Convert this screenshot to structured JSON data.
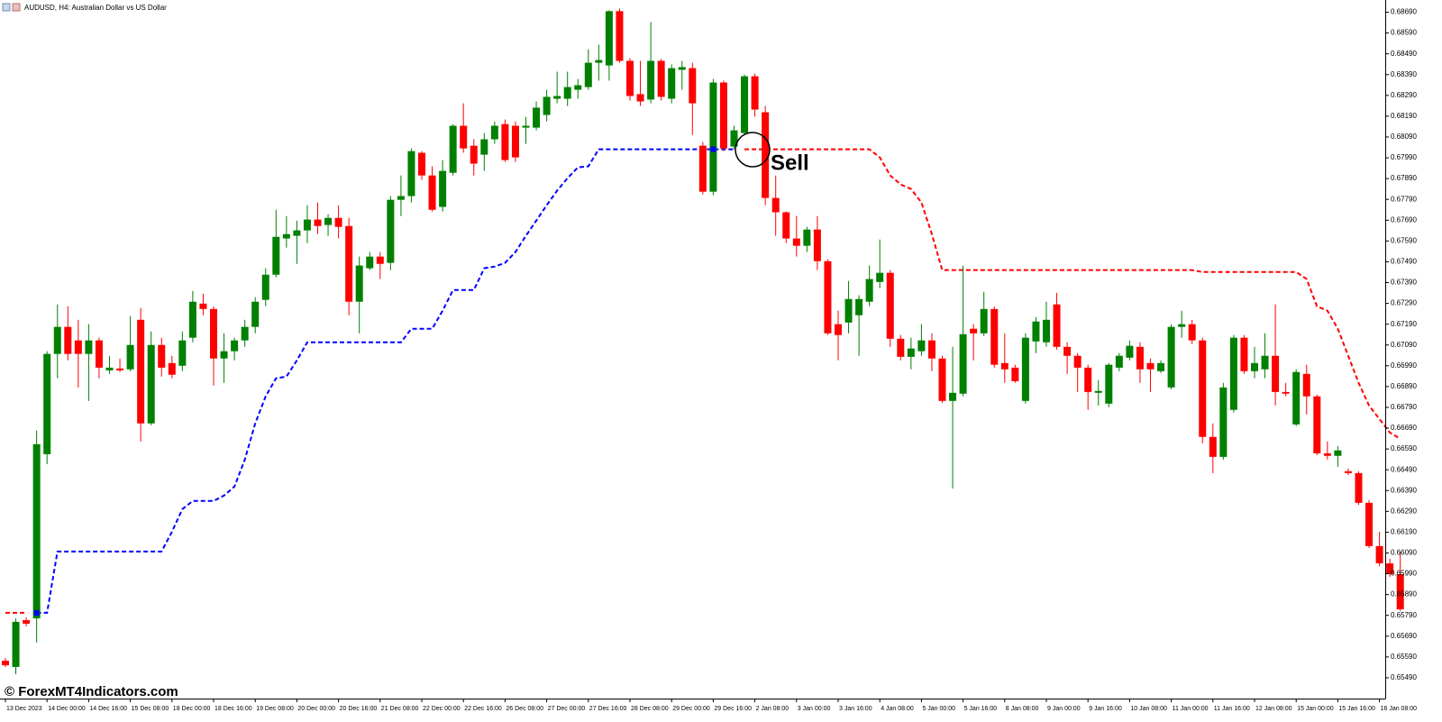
{
  "chart_data": {
    "type": "candlestick",
    "title": "AUDUSD, H4:  Australian Dollar vs US Dollar",
    "watermark": "© ForexMT4Indicators.com",
    "annotation": "Sell",
    "up_color": "#008000",
    "down_color": "#ff0000",
    "grid": false,
    "ylim": [
      0.6539,
      0.6874
    ],
    "yticks": [
      {
        "value": 0.6869,
        "label": "0.68690"
      },
      {
        "value": 0.6859,
        "label": "0.68590"
      },
      {
        "value": 0.6849,
        "label": "0.68490"
      },
      {
        "value": 0.6839,
        "label": "0.68390"
      },
      {
        "value": 0.6829,
        "label": "0.68290"
      },
      {
        "value": 0.6819,
        "label": "0.68190"
      },
      {
        "value": 0.6809,
        "label": "0.68090"
      },
      {
        "value": 0.6799,
        "label": "0.67990"
      },
      {
        "value": 0.6789,
        "label": "0.67890"
      },
      {
        "value": 0.6779,
        "label": "0.67790"
      },
      {
        "value": 0.6769,
        "label": "0.67690"
      },
      {
        "value": 0.6759,
        "label": "0.67590"
      },
      {
        "value": 0.6749,
        "label": "0.67490"
      },
      {
        "value": 0.6739,
        "label": "0.67390"
      },
      {
        "value": 0.6729,
        "label": "0.67290"
      },
      {
        "value": 0.6719,
        "label": "0.67190"
      },
      {
        "value": 0.6709,
        "label": "0.67090"
      },
      {
        "value": 0.6699,
        "label": "0.66990"
      },
      {
        "value": 0.6689,
        "label": "0.66890"
      },
      {
        "value": 0.6679,
        "label": "0.66790"
      },
      {
        "value": 0.6669,
        "label": "0.66690"
      },
      {
        "value": 0.6659,
        "label": "0.66590"
      },
      {
        "value": 0.6649,
        "label": "0.66490"
      },
      {
        "value": 0.6639,
        "label": "0.66390"
      },
      {
        "value": 0.6629,
        "label": "0.66290"
      },
      {
        "value": 0.6619,
        "label": "0.66190"
      },
      {
        "value": 0.6609,
        "label": "0.66090"
      },
      {
        "value": 0.6599,
        "label": "0.65990"
      },
      {
        "value": 0.6589,
        "label": "0.65890"
      },
      {
        "value": 0.6579,
        "label": "0.65790"
      },
      {
        "value": 0.6569,
        "label": "0.65690"
      },
      {
        "value": 0.6559,
        "label": "0.65590"
      },
      {
        "value": 0.6549,
        "label": "0.65490"
      }
    ],
    "categories": [
      "13 Dec 2023",
      null,
      null,
      null,
      "14 Dec 00:00",
      null,
      null,
      null,
      "14 Dec 16:00",
      null,
      null,
      null,
      "15 Dec 08:00",
      null,
      null,
      null,
      "18 Dec 00:00",
      null,
      null,
      null,
      "18 Dec 16:00",
      null,
      null,
      null,
      "19 Dec 08:00",
      null,
      null,
      null,
      "20 Dec 00:00",
      null,
      null,
      null,
      "20 Dec 16:00",
      null,
      null,
      null,
      "21 Dec 08:00",
      null,
      null,
      null,
      "22 Dec 00:00",
      null,
      null,
      null,
      "22 Dec 16:00",
      null,
      null,
      null,
      "26 Dec 08:00",
      null,
      null,
      null,
      "27 Dec 00:00",
      null,
      null,
      null,
      "27 Dec 16:00",
      null,
      null,
      null,
      "28 Dec 08:00",
      null,
      null,
      null,
      "29 Dec 00:00",
      null,
      null,
      null,
      "29 Dec 16:00",
      null,
      null,
      null,
      "2 Jan 08:00",
      null,
      null,
      null,
      "3 Jan 00:00",
      null,
      null,
      null,
      "3 Jan 16:00",
      null,
      null,
      null,
      "4 Jan 08:00",
      null,
      null,
      null,
      "5 Jan 00:00",
      null,
      null,
      null,
      "5 Jan 16:00",
      null,
      null,
      null,
      "8 Jan 08:00",
      null,
      null,
      null,
      "9 Jan 00:00",
      null,
      null,
      null,
      "9 Jan 16:00",
      null,
      null,
      null,
      "10 Jan 08:00",
      null,
      null,
      null,
      "11 Jan 00:00",
      null,
      null,
      null,
      "11 Jan 16:00",
      null,
      null,
      null,
      "12 Jan 08:00",
      null,
      null,
      null,
      "15 Jan 00:00",
      null,
      null,
      null,
      "15 Jan 16:00",
      null,
      null,
      null,
      "16 Jan 08:00",
      null,
      null
    ],
    "open": [
      0.65572,
      0.65542,
      0.65767,
      0.65776,
      0.66565,
      0.67047,
      0.67177,
      0.67112,
      0.67047,
      0.67112,
      0.66968,
      0.66977,
      0.66973,
      0.67211,
      0.66713,
      0.6709,
      0.67003,
      0.6699,
      0.67125,
      0.67289,
      0.67263,
      0.67025,
      0.6706,
      0.67112,
      0.67177,
      0.67307,
      0.67428,
      0.67602,
      0.67615,
      0.67641,
      0.67693,
      0.67667,
      0.67701,
      0.67662,
      0.67298,
      0.67459,
      0.67515,
      0.67485,
      0.67788,
      0.67806,
      0.68014,
      0.67905,
      0.67754,
      0.67918,
      0.68144,
      0.68048,
      0.68005,
      0.68079,
      0.68152,
      0.68144,
      0.68135,
      0.68135,
      0.68196,
      0.68274,
      0.68274,
      0.68317,
      0.6833,
      0.68447,
      0.68434,
      0.68695,
      0.68456,
      0.68296,
      0.6827,
      0.68456,
      0.68274,
      0.68413,
      0.68421,
      0.68048,
      0.67827,
      0.68352,
      0.68044,
      0.68109,
      0.68382,
      0.68209,
      0.67797,
      0.67728,
      0.67602,
      0.67567,
      0.67645,
      0.67493,
      0.6719,
      0.67198,
      0.67233,
      0.67298,
      0.67393,
      0.67437,
      0.6712,
      0.67033,
      0.6706,
      0.67112,
      0.67025,
      0.66821,
      0.66856,
      0.67168,
      0.67146,
      0.67263,
      0.67003,
      0.66981,
      0.66821,
      0.67107,
      0.67103,
      0.67285,
      0.67081,
      0.67038,
      0.66981,
      0.6686,
      0.66808,
      0.66981,
      0.67029,
      0.67081,
      0.67003,
      0.66964,
      0.66886,
      0.67177,
      0.6719,
      0.67112,
      0.66648,
      0.66552,
      0.66778,
      0.67125,
      0.66964,
      0.66973,
      0.67038,
      0.66864,
      0.66708,
      0.66951,
      0.66843,
      0.66569,
      0.66557,
      0.66483,
      0.66474,
      0.66331,
      0.66123,
      0.6604,
      0.65988
    ],
    "high": [
      0.65585,
      0.65776,
      0.6578,
      0.66678,
      0.6706,
      0.67285,
      0.67276,
      0.67211,
      0.6719,
      0.67125,
      0.67038,
      0.67025,
      0.67229,
      0.67268,
      0.67155,
      0.67125,
      0.67038,
      0.67155,
      0.6735,
      0.67337,
      0.67276,
      0.67146,
      0.67125,
      0.67211,
      0.6732,
      0.67459,
      0.6774,
      0.6771,
      0.67688,
      0.67762,
      0.67775,
      0.67719,
      0.67762,
      0.67701,
      0.67515,
      0.67537,
      0.67537,
      0.67806,
      0.67905,
      0.68035,
      0.68022,
      0.67949,
      0.67979,
      0.68152,
      0.68252,
      0.68079,
      0.68109,
      0.68165,
      0.68174,
      0.68165,
      0.68187,
      0.68261,
      0.68317,
      0.68404,
      0.68404,
      0.68369,
      0.68512,
      0.68534,
      0.68699,
      0.68708,
      0.68469,
      0.68456,
      0.68643,
      0.68465,
      0.68439,
      0.68456,
      0.68447,
      0.68066,
      0.68369,
      0.68361,
      0.68144,
      0.68391,
      0.68395,
      0.68239,
      0.67905,
      0.67732,
      0.6771,
      0.67658,
      0.6771,
      0.67502,
      0.67255,
      0.67398,
      0.67329,
      0.67472,
      0.67597,
      0.6745,
      0.67138,
      0.67125,
      0.6719,
      0.67146,
      0.67038,
      0.67081,
      0.67472,
      0.6719,
      0.67346,
      0.67276,
      0.67146,
      0.66995,
      0.67146,
      0.67224,
      0.67298,
      0.67341,
      0.67103,
      0.67051,
      0.66995,
      0.66921,
      0.67003,
      0.67051,
      0.67112,
      0.67103,
      0.67025,
      0.67016,
      0.6719,
      0.67255,
      0.67211,
      0.67125,
      0.66713,
      0.66908,
      0.67138,
      0.67138,
      0.67081,
      0.67146,
      0.67285,
      0.66908,
      0.66973,
      0.66995,
      0.66851,
      0.66626,
      0.66604,
      0.66496,
      0.66483,
      0.66344,
      0.66192,
      0.66062,
      0.66097
    ],
    "low": [
      0.65542,
      0.65507,
      0.65737,
      0.65659,
      0.66517,
      0.6693,
      0.67016,
      0.66886,
      0.66821,
      0.6693,
      0.66951,
      0.6696,
      0.66964,
      0.66626,
      0.66704,
      0.66938,
      0.6693,
      0.66964,
      0.67103,
      0.67233,
      0.66895,
      0.66908,
      0.67016,
      0.67081,
      0.67146,
      0.67276,
      0.67415,
      0.67558,
      0.6748,
      0.6758,
      0.67623,
      0.67615,
      0.67602,
      0.67233,
      0.67146,
      0.6745,
      0.67407,
      0.6745,
      0.6771,
      0.67775,
      0.67884,
      0.67732,
      0.67732,
      0.67905,
      0.68014,
      0.67905,
      0.67927,
      0.68057,
      0.6797,
      0.6797,
      0.68057,
      0.68122,
      0.68165,
      0.68252,
      0.68239,
      0.68274,
      0.68317,
      0.68361,
      0.68361,
      0.68447,
      0.68265,
      0.68239,
      0.68252,
      0.68265,
      0.68252,
      0.68317,
      0.681,
      0.67814,
      0.6781,
      0.68022,
      0.68031,
      0.681,
      0.68187,
      0.67762,
      0.67615,
      0.6758,
      0.67515,
      0.67537,
      0.6745,
      0.67138,
      0.67016,
      0.67146,
      0.67038,
      0.67276,
      0.67363,
      0.67081,
      0.67016,
      0.66973,
      0.67038,
      0.66964,
      0.66812,
      0.664,
      0.66843,
      0.67016,
      0.67133,
      0.66981,
      0.66908,
      0.66908,
      0.66808,
      0.67051,
      0.67081,
      0.67068,
      0.66951,
      0.66864,
      0.66778,
      0.66799,
      0.66791,
      0.66964,
      0.67016,
      0.66908,
      0.66864,
      0.66955,
      0.66877,
      0.67125,
      0.67094,
      0.66617,
      0.66474,
      0.66539,
      0.66765,
      0.66951,
      0.6693,
      0.6693,
      0.66799,
      0.66843,
      0.667,
      0.66756,
      0.66561,
      0.66539,
      0.66504,
      0.66465,
      0.66322,
      0.66114,
      0.66027,
      0.65975,
      0.65811
    ],
    "close": [
      0.6555,
      0.65759,
      0.6575,
      0.66613,
      0.67047,
      0.67177,
      0.67047,
      0.67047,
      0.67112,
      0.66981,
      0.66981,
      0.66968,
      0.6709,
      0.66713,
      0.6709,
      0.66981,
      0.66947,
      0.67112,
      0.67298,
      0.67263,
      0.67025,
      0.6706,
      0.67112,
      0.67177,
      0.67298,
      0.67428,
      0.6761,
      0.67623,
      0.67641,
      0.67693,
      0.67662,
      0.67701,
      0.67658,
      0.67298,
      0.67472,
      0.67515,
      0.6748,
      0.67788,
      0.67806,
      0.68022,
      0.67905,
      0.6774,
      0.67927,
      0.68144,
      0.68035,
      0.67962,
      0.68079,
      0.68144,
      0.67979,
      0.67992,
      0.68144,
      0.68231,
      0.68283,
      0.68287,
      0.6833,
      0.68339,
      0.68447,
      0.6846,
      0.68695,
      0.68456,
      0.68287,
      0.68261,
      0.68456,
      0.68283,
      0.68421,
      0.68426,
      0.68252,
      0.67827,
      0.68352,
      0.68035,
      0.68122,
      0.68382,
      0.68222,
      0.67797,
      0.67728,
      0.67602,
      0.67567,
      0.67645,
      0.67493,
      0.67146,
      0.67138,
      0.67311,
      0.67311,
      0.67407,
      0.67437,
      0.6712,
      0.67033,
      0.67073,
      0.67112,
      0.67025,
      0.66821,
      0.6686,
      0.67142,
      0.67146,
      0.67263,
      0.66995,
      0.66973,
      0.66916,
      0.67125,
      0.67203,
      0.67211,
      0.67081,
      0.67038,
      0.66981,
      0.66864,
      0.66869,
      0.66995,
      0.67038,
      0.67086,
      0.66973,
      0.66973,
      0.67003,
      0.67177,
      0.6719,
      0.67112,
      0.66648,
      0.66552,
      0.66886,
      0.67125,
      0.66964,
      0.67003,
      0.67038,
      0.66864,
      0.66856,
      0.6696,
      0.66843,
      0.66569,
      0.66557,
      0.66583,
      0.66474,
      0.66331,
      0.66123,
      0.6604,
      0.65988,
      0.65819
    ],
    "lines": [
      {
        "color": "#0000ff",
        "values": [
          null,
          null,
          null,
          0.65802,
          0.65802,
          0.66097,
          0.66097,
          0.66097,
          0.66097,
          0.66097,
          0.66097,
          0.66097,
          0.66097,
          0.66097,
          0.66097,
          0.66097,
          0.66192,
          0.66301,
          0.6634,
          0.6634,
          0.6634,
          0.66366,
          0.66409,
          0.66539,
          0.66713,
          0.66843,
          0.6693,
          0.66938,
          0.67016,
          0.67103,
          0.67103,
          0.67103,
          0.67103,
          0.67103,
          0.67103,
          0.67103,
          0.67103,
          0.67103,
          0.67103,
          0.67168,
          0.67168,
          0.67168,
          0.67255,
          0.67354,
          0.67354,
          0.67354,
          0.67459,
          0.67467,
          0.67485,
          0.67537,
          0.67615,
          0.67688,
          0.67762,
          0.67832,
          0.67892,
          0.67944,
          0.67949,
          0.68031,
          0.68031,
          0.68031,
          0.68031,
          0.68031,
          0.68031,
          0.68031,
          0.68031,
          0.68031,
          0.68031,
          0.68031,
          0.68031,
          0.68031,
          0.68031,
          null,
          null,
          null,
          null,
          null,
          null,
          null,
          null,
          null,
          null,
          null,
          null,
          null,
          null,
          null,
          null,
          null,
          null,
          null,
          null,
          null,
          null,
          null,
          null,
          null,
          null,
          null,
          null,
          null,
          null,
          null,
          null,
          null,
          null,
          null,
          null,
          null,
          null,
          null,
          null,
          null,
          null,
          null,
          null,
          null,
          null,
          null,
          null,
          null,
          null,
          null,
          null,
          null,
          null,
          null,
          null,
          null,
          null,
          null,
          null,
          null,
          null,
          null,
          null
        ]
      },
      {
        "color": "#ff0000",
        "values": [
          0.65802,
          0.65802,
          0.65802,
          null,
          null,
          null,
          null,
          null,
          null,
          null,
          null,
          null,
          null,
          null,
          null,
          null,
          null,
          null,
          null,
          null,
          null,
          null,
          null,
          null,
          null,
          null,
          null,
          null,
          null,
          null,
          null,
          null,
          null,
          null,
          null,
          null,
          null,
          null,
          null,
          null,
          null,
          null,
          null,
          null,
          null,
          null,
          null,
          null,
          null,
          null,
          null,
          null,
          null,
          null,
          null,
          null,
          null,
          null,
          null,
          null,
          null,
          null,
          null,
          null,
          null,
          null,
          null,
          null,
          null,
          null,
          null,
          0.68031,
          0.68031,
          0.68031,
          0.68031,
          0.68031,
          0.68031,
          0.68031,
          0.68031,
          0.68031,
          0.68031,
          0.68031,
          0.68031,
          0.68031,
          0.67992,
          0.67905,
          0.67862,
          0.6784,
          0.67775,
          0.67623,
          0.6745,
          0.6745,
          0.6745,
          0.6745,
          0.6745,
          0.6745,
          0.6745,
          0.6745,
          0.6745,
          0.6745,
          0.6745,
          0.6745,
          0.6745,
          0.6745,
          0.6745,
          0.6745,
          0.6745,
          0.6745,
          0.6745,
          0.6745,
          0.6745,
          0.6745,
          0.6745,
          0.6745,
          0.6745,
          0.67441,
          0.67441,
          0.67441,
          0.67441,
          0.67441,
          0.67441,
          0.67441,
          0.67441,
          0.67441,
          0.67441,
          0.67407,
          0.67276,
          0.67255,
          0.67168,
          0.67038,
          0.66908,
          0.66799,
          0.66734,
          0.66669,
          0.66639
        ]
      }
    ],
    "markers": {
      "color": "#0000ff",
      "values": [
        null,
        null,
        null,
        0.65802,
        null,
        null,
        null,
        null,
        null,
        null,
        null,
        null,
        null,
        null,
        null,
        null,
        null,
        null,
        null,
        null,
        null,
        null,
        null,
        null,
        null,
        null,
        null,
        null,
        null,
        null,
        null,
        null,
        null,
        null,
        null,
        null,
        null,
        null,
        null,
        null,
        null,
        null,
        null,
        null,
        null,
        null,
        null,
        null,
        null,
        null,
        null,
        null,
        null,
        null,
        null,
        null,
        null,
        null,
        null,
        null,
        null,
        null,
        null,
        null,
        null,
        null,
        null,
        null,
        0.68031,
        null,
        null,
        null,
        null,
        null,
        null,
        null,
        null,
        null,
        null,
        null,
        null,
        null,
        null,
        null,
        null,
        null,
        null,
        null,
        null,
        null,
        null,
        null,
        null,
        null,
        null,
        null,
        null,
        null,
        null,
        null,
        null,
        null,
        null,
        null,
        null,
        null,
        null,
        null,
        null,
        null,
        null,
        null,
        null,
        null,
        null,
        null,
        null,
        null,
        null,
        null,
        null,
        null,
        null,
        null,
        null,
        null,
        null,
        null,
        null,
        null,
        null,
        null,
        null,
        null,
        null
      ]
    }
  }
}
